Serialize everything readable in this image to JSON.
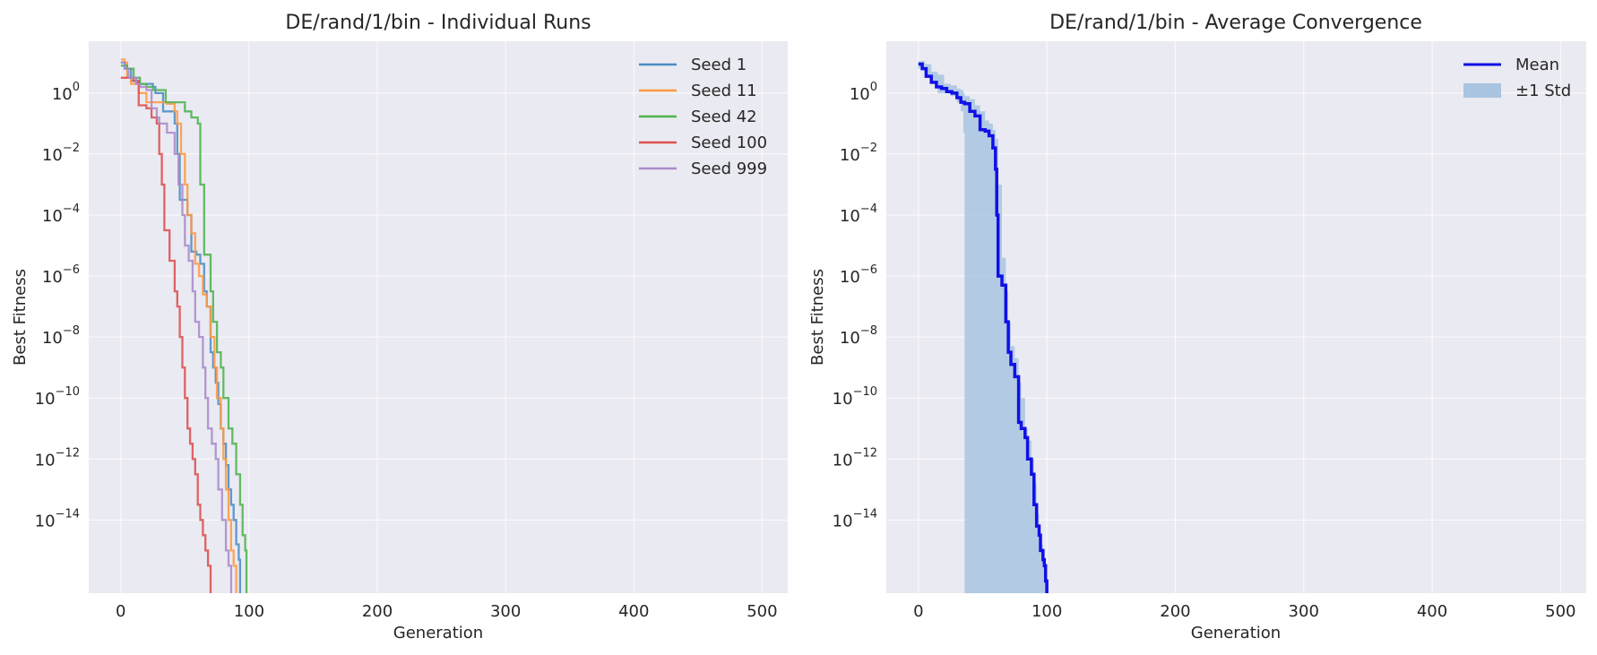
{
  "chart_data": [
    {
      "type": "line",
      "title": "DE/rand/1/bin - Individual Runs",
      "xlabel": "Generation",
      "ylabel": "Best Fitness",
      "yscale": "log",
      "xlim": [
        -25,
        520
      ],
      "ylim_log10": [
        -16.4,
        1.7
      ],
      "x_ticks": [
        0,
        100,
        200,
        300,
        400,
        500
      ],
      "y_tick_exponents": [
        0,
        -2,
        -4,
        -6,
        -8,
        -10,
        -12,
        -14
      ],
      "grid": true,
      "legend_position": "top-right",
      "series": [
        {
          "name": "Seed 1",
          "color": "#4c8cc4",
          "x": [
            0,
            3,
            8,
            12,
            15,
            25,
            27,
            33,
            38,
            42,
            44,
            46,
            49,
            52,
            55,
            59,
            62,
            65,
            67,
            70,
            72,
            74,
            76,
            78,
            80,
            82,
            84,
            86,
            88,
            90,
            92,
            93
          ],
          "log10_y": [
            1.0,
            0.8,
            0.4,
            0.35,
            0.3,
            0.2,
            0.0,
            -0.6,
            -0.6,
            -1.0,
            -2.0,
            -3.5,
            -3.5,
            -4.0,
            -5.2,
            -5.3,
            -5.6,
            -6.5,
            -7.0,
            -8.5,
            -9.0,
            -9.5,
            -10.2,
            -11.0,
            -11.5,
            -12.2,
            -13.0,
            -13.5,
            -14.0,
            -14.8,
            -15.3,
            -16.4
          ]
        },
        {
          "name": "Seed 11",
          "color": "#ff9940",
          "x": [
            0,
            3,
            5,
            8,
            14,
            20,
            26,
            36,
            42,
            44,
            47,
            50,
            52,
            55,
            58,
            61,
            64,
            67,
            70,
            73,
            75,
            78,
            80,
            82,
            84,
            86,
            88,
            90
          ],
          "log10_y": [
            1.1,
            1.0,
            0.5,
            0.3,
            0.0,
            -0.3,
            -0.3,
            -0.35,
            -0.6,
            -1.0,
            -2.0,
            -3.0,
            -4.0,
            -4.6,
            -5.6,
            -6.0,
            -6.6,
            -7.0,
            -8.0,
            -9.0,
            -10.0,
            -11.0,
            -12.0,
            -13.0,
            -14.0,
            -15.0,
            -15.5,
            -16.4
          ]
        },
        {
          "name": "Seed 42",
          "color": "#4eb34e",
          "x": [
            0,
            5,
            10,
            15,
            20,
            25,
            35,
            50,
            55,
            60,
            62,
            65,
            70,
            72,
            75,
            78,
            80,
            84,
            87,
            90,
            93,
            95,
            97,
            98
          ],
          "log10_y": [
            0.9,
            0.8,
            0.5,
            0.3,
            0.2,
            0.1,
            -0.3,
            -0.6,
            -0.8,
            -1.0,
            -3.0,
            -5.3,
            -6.5,
            -7.5,
            -8.5,
            -9.0,
            -10.0,
            -11.0,
            -11.5,
            -12.5,
            -13.5,
            -14.5,
            -15.0,
            -16.4
          ]
        },
        {
          "name": "Seed 100",
          "color": "#dd4f4f",
          "x": [
            0,
            10,
            14,
            20,
            24,
            28,
            30,
            32,
            34,
            38,
            42,
            44,
            46,
            48,
            50,
            52,
            54,
            56,
            58,
            60,
            62,
            64,
            66,
            68,
            70
          ],
          "log10_y": [
            0.5,
            0.4,
            -0.4,
            -0.5,
            -0.8,
            -1.0,
            -2.0,
            -3.0,
            -4.5,
            -5.5,
            -6.5,
            -7.0,
            -8.0,
            -9.0,
            -10.0,
            -11.0,
            -11.5,
            -12.0,
            -12.5,
            -13.5,
            -14.0,
            -14.5,
            -15.0,
            -15.5,
            -16.4
          ]
        },
        {
          "name": "Seed 999",
          "color": "#a98bc9",
          "x": [
            0,
            3,
            6,
            12,
            15,
            20,
            24,
            28,
            30,
            36,
            42,
            45,
            48,
            50,
            53,
            56,
            58,
            61,
            64,
            66,
            68,
            71,
            74,
            76,
            79,
            82,
            84,
            86
          ],
          "log10_y": [
            1.0,
            0.8,
            0.5,
            0.3,
            0.2,
            0.1,
            -0.5,
            -0.8,
            -1.0,
            -1.3,
            -2.0,
            -3.0,
            -4.0,
            -5.0,
            -5.5,
            -6.5,
            -7.5,
            -8.0,
            -9.0,
            -10.0,
            -11.0,
            -11.5,
            -12.0,
            -13.0,
            -14.0,
            -15.0,
            -15.5,
            -16.4
          ]
        }
      ],
      "legend": [
        "Seed 1",
        "Seed 11",
        "Seed 42",
        "Seed 100",
        "Seed 999"
      ]
    },
    {
      "type": "area",
      "title": "DE/rand/1/bin - Average Convergence",
      "xlabel": "Generation",
      "ylabel": "Best Fitness",
      "yscale": "log",
      "xlim": [
        -25,
        520
      ],
      "ylim_log10": [
        -16.4,
        1.7
      ],
      "x_ticks": [
        0,
        100,
        200,
        300,
        400,
        500
      ],
      "y_tick_exponents": [
        0,
        -2,
        -4,
        -6,
        -8,
        -10,
        -12,
        -14
      ],
      "grid": true,
      "legend_position": "top-right",
      "mean": {
        "name": "Mean",
        "color": "#1010e6",
        "x": [
          0,
          3,
          6,
          10,
          14,
          18,
          22,
          26,
          30,
          33,
          36,
          40,
          44,
          48,
          52,
          55,
          58,
          60,
          61,
          62,
          65,
          68,
          70,
          72,
          75,
          78,
          80,
          83,
          85,
          88,
          90,
          92,
          94,
          95,
          97,
          98,
          99,
          100
        ],
        "log10_y": [
          0.95,
          0.8,
          0.55,
          0.35,
          0.2,
          0.15,
          0.05,
          0.0,
          -0.15,
          -0.3,
          -0.35,
          -0.6,
          -0.75,
          -1.2,
          -1.25,
          -1.4,
          -1.8,
          -2.5,
          -4.0,
          -6.0,
          -6.3,
          -7.5,
          -8.5,
          -8.9,
          -9.3,
          -10.8,
          -11.0,
          -11.3,
          -12.0,
          -12.5,
          -13.5,
          -14.2,
          -14.5,
          -15.0,
          -15.3,
          -15.5,
          -16.0,
          -16.4
        ]
      },
      "std_band": {
        "name": "±1 Std",
        "color": "#a8c4e0",
        "x": [
          0,
          5,
          10,
          15,
          20,
          25,
          30,
          33,
          35,
          36,
          40,
          44,
          48,
          52,
          55,
          58,
          60,
          62,
          65,
          68,
          70,
          72,
          75,
          78,
          80,
          83,
          85,
          88,
          90,
          92,
          94,
          95,
          97,
          98,
          99,
          100
        ],
        "upper_log10": [
          1.05,
          0.95,
          0.7,
          0.6,
          0.3,
          0.25,
          0.15,
          0.1,
          0.0,
          -0.1,
          -0.2,
          -0.4,
          -0.6,
          -0.9,
          -1.0,
          -1.2,
          -1.5,
          -3.0,
          -5.4,
          -6.5,
          -7.5,
          -8.3,
          -8.7,
          -9.5,
          -10.0,
          -11.0,
          -11.4,
          -12.0,
          -12.8,
          -13.8,
          -14.2,
          -14.8,
          -15.0,
          -15.3,
          -15.8,
          -16.0
        ],
        "lower_log10": [
          0.8,
          0.5,
          0.3,
          0.0,
          0.0,
          -0.1,
          -0.3,
          -0.6,
          -1.3,
          -16.4,
          -16.4,
          -16.4,
          -16.4,
          -16.4,
          -16.4,
          -16.4,
          -16.4,
          -16.4,
          -16.4,
          -16.4,
          -16.4,
          -16.4,
          -16.4,
          -16.4,
          -16.4,
          -16.4,
          -16.4,
          -16.4,
          -16.4,
          -16.4,
          -16.4,
          -16.4,
          -16.4,
          -16.4,
          -16.4,
          -16.4
        ]
      },
      "legend": [
        "Mean",
        "±1 Std"
      ]
    }
  ]
}
